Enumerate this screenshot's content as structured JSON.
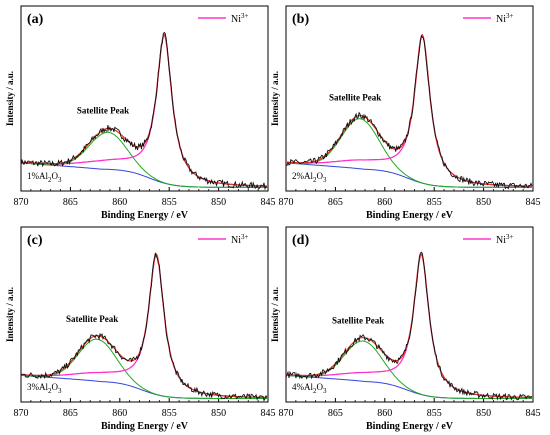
{
  "chart_data": [
    {
      "type": "line",
      "panel_label": "(a)",
      "legend": "Ni3+",
      "legend_sup": "3+",
      "annotation": "Satellite Peak",
      "sample": "1%Al2O3",
      "xlabel": "Binding Energy / eV",
      "ylabel": "Intensity / a.u.",
      "xlim": [
        870,
        845
      ],
      "xticks": [
        870,
        865,
        860,
        855,
        850,
        845
      ],
      "grid": false,
      "legend_position": "top-right",
      "peaks": {
        "satellite": 861.2,
        "main": 855.5
      },
      "series": [
        {
          "name": "Ni3+",
          "x": [
            870,
            866,
            864,
            862,
            861,
            860,
            859,
            858,
            857,
            856,
            855.5,
            855,
            854,
            853,
            852,
            850,
            848,
            845
          ],
          "y": [
            0.03,
            0.06,
            0.12,
            0.22,
            0.27,
            0.24,
            0.16,
            0.12,
            0.28,
            0.68,
            0.9,
            0.72,
            0.28,
            0.15,
            0.1,
            0.06,
            0.04,
            0.03
          ]
        }
      ]
    },
    {
      "type": "line",
      "panel_label": "(b)",
      "legend": "Ni3+",
      "legend_sup": "3+",
      "annotation": "Satellite Peak",
      "sample": "2%Al2O3",
      "xlabel": "Binding Energy / eV",
      "ylabel": "Intensity / a.u.",
      "xlim": [
        870,
        845
      ],
      "xticks": [
        870,
        865,
        860,
        855,
        850,
        845
      ],
      "grid": false,
      "legend_position": "top-right",
      "peaks": {
        "satellite": 862.5,
        "main": 856.2
      },
      "series": [
        {
          "name": "Ni3+",
          "x": [
            870,
            866,
            864,
            863,
            862.5,
            861,
            860,
            859,
            858,
            857,
            856.2,
            855,
            854,
            853,
            852,
            850,
            848,
            845
          ],
          "y": [
            0.03,
            0.08,
            0.22,
            0.32,
            0.36,
            0.3,
            0.22,
            0.18,
            0.28,
            0.7,
            0.92,
            0.62,
            0.25,
            0.14,
            0.1,
            0.06,
            0.04,
            0.03
          ]
        }
      ]
    },
    {
      "type": "line",
      "panel_label": "(c)",
      "legend": "Ni3+",
      "legend_sup": "3+",
      "annotation": "Satellite Peak",
      "sample": "3%Al2O3",
      "xlabel": "Binding Energy / eV",
      "ylabel": "Intensity / a.u.",
      "xlim": [
        870,
        845
      ],
      "xticks": [
        870,
        865,
        860,
        855,
        850,
        845
      ],
      "grid": false,
      "legend_position": "top-right",
      "peaks": {
        "satellite": 862.3,
        "main": 856.3
      },
      "series": [
        {
          "name": "Ni3+",
          "x": [
            870,
            866,
            864,
            863,
            862.3,
            861,
            860,
            859,
            858,
            857,
            856.3,
            855,
            854,
            853,
            852,
            850,
            848,
            845
          ],
          "y": [
            0.04,
            0.09,
            0.22,
            0.3,
            0.33,
            0.28,
            0.2,
            0.17,
            0.26,
            0.68,
            0.93,
            0.6,
            0.22,
            0.12,
            0.08,
            0.05,
            0.04,
            0.03
          ]
        }
      ]
    },
    {
      "type": "line",
      "panel_label": "(d)",
      "legend": "Ni3+",
      "legend_sup": "3+",
      "annotation": "Satellite Peak",
      "sample": "4%Al2O3",
      "xlabel": "Binding Energy / eV",
      "ylabel": "Intensity / a.u.",
      "xlim": [
        870,
        845
      ],
      "xticks": [
        870,
        865,
        860,
        855,
        850,
        845
      ],
      "grid": false,
      "legend_position": "top-right",
      "peaks": {
        "satellite": 862.2,
        "main": 856.3
      },
      "series": [
        {
          "name": "Ni3+",
          "x": [
            870,
            866,
            864,
            863,
            862.2,
            861,
            860,
            859,
            858,
            857,
            856.3,
            855,
            854,
            853,
            852,
            850,
            848,
            845
          ],
          "y": [
            0.04,
            0.09,
            0.21,
            0.29,
            0.32,
            0.27,
            0.19,
            0.16,
            0.25,
            0.66,
            0.92,
            0.58,
            0.21,
            0.11,
            0.08,
            0.05,
            0.04,
            0.03
          ]
        }
      ]
    }
  ],
  "colors": {
    "raw": "#111111",
    "envelope": "#e8341c",
    "ni3": "#ff33cc",
    "satellite": "#22aa22",
    "background": "#3344dd",
    "frame": "#000000"
  }
}
